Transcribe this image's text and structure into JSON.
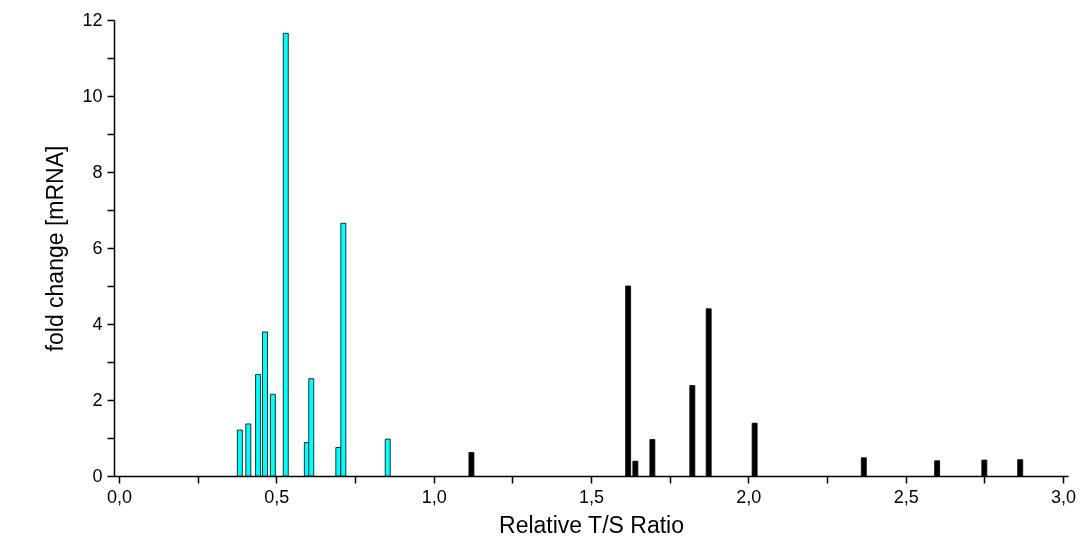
{
  "chart_data": {
    "type": "bar",
    "xlabel": "Relative T/S Ratio",
    "ylabel": "fold change [mRNA]",
    "series": [
      {
        "color": "#00ffff",
        "x": [
          0.384,
          0.411,
          0.442,
          0.464,
          0.489,
          0.53,
          0.597,
          0.611,
          0.697,
          0.713,
          0.854
        ],
        "values": [
          1.21,
          1.37,
          2.67,
          3.79,
          2.15,
          11.65,
          0.88,
          2.56,
          0.75,
          6.65,
          0.97
        ]
      },
      {
        "color": "#000000",
        "x": [
          1.12,
          1.618,
          1.641,
          1.695,
          1.822,
          1.874,
          2.02,
          2.367,
          2.6,
          2.75,
          2.864
        ],
        "values": [
          0.62,
          5.0,
          0.39,
          0.96,
          2.38,
          4.4,
          1.39,
          0.48,
          0.4,
          0.42,
          0.43
        ]
      }
    ],
    "xlim": [
      0,
      3
    ],
    "xticks": [
      {
        "value": 0,
        "label": "0,0"
      },
      {
        "value": 0.25,
        "label": null
      },
      {
        "value": 0.5,
        "label": "0,5"
      },
      {
        "value": 0.75,
        "label": null
      },
      {
        "value": 1,
        "label": "1,0"
      },
      {
        "value": 1.25,
        "label": null
      },
      {
        "value": 1.5,
        "label": "1,5"
      },
      {
        "value": 1.75,
        "label": null
      },
      {
        "value": 2,
        "label": "2,0"
      },
      {
        "value": 2.25,
        "label": null
      },
      {
        "value": 2.5,
        "label": "2,5"
      },
      {
        "value": 2.75,
        "label": null
      },
      {
        "value": 3,
        "label": "3,0"
      }
    ],
    "ylim": [
      0,
      12
    ],
    "yticks": [
      0,
      {
        "value": 1,
        "label": null
      },
      2,
      {
        "value": 3,
        "label": null
      },
      4,
      {
        "value": 5,
        "label": null
      },
      6,
      {
        "value": 7,
        "label": null
      },
      8,
      {
        "value": 9,
        "label": null
      },
      10,
      {
        "value": 11,
        "label": null
      },
      12
    ],
    "grid": false
  }
}
